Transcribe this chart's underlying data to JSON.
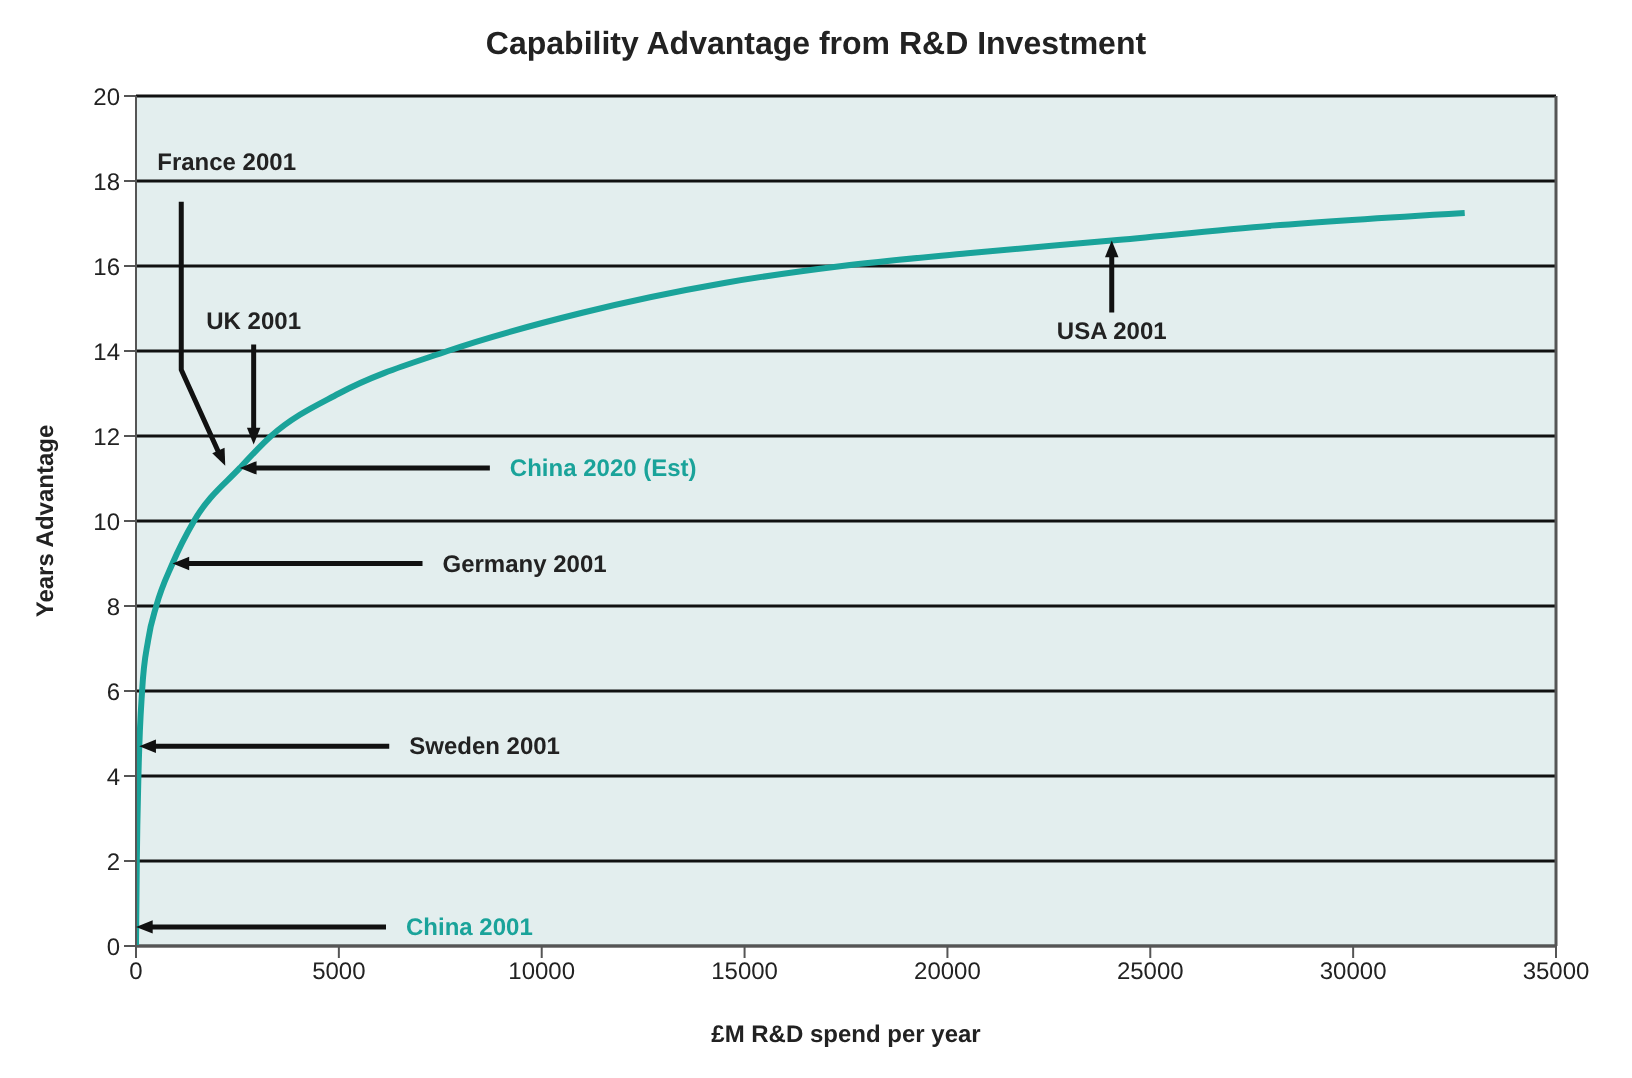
{
  "chart_data": {
    "type": "line",
    "title": "Capability Advantage from R&D Investment",
    "xlabel": "£M R&D spend per year",
    "ylabel": "Years Advantage",
    "xlim": [
      0,
      35000
    ],
    "xticks": [
      0,
      5000,
      10000,
      15000,
      20000,
      25000,
      30000,
      35000
    ],
    "ylim": [
      0,
      20
    ],
    "yticks": [
      0,
      2,
      4,
      6,
      8,
      10,
      12,
      14,
      16,
      18,
      20
    ],
    "grid": "y",
    "marker": "none",
    "line_style": "solid",
    "series": [
      {
        "color": "#1aa39a",
        "x": [
          0,
          20,
          60,
          150,
          300,
          500,
          900,
          1430,
          2560,
          3330,
          5000,
          7680,
          11000,
          14500,
          17400,
          20500,
          24050,
          28000,
          32750
        ],
        "values": [
          0,
          2,
          4,
          6,
          7.2,
          8,
          9,
          10,
          11.25,
          12,
          13,
          14,
          14.9,
          15.6,
          16,
          16.3,
          16.6,
          16.95,
          17.25
        ]
      }
    ],
    "annotations": [
      {
        "text": "France 2001",
        "x": 2200,
        "y": 11.3
      },
      {
        "text": "UK 2001",
        "x": 2900,
        "y": 11.8
      },
      {
        "text": "China 2020 (Est)",
        "x": 2560,
        "y": 11.25
      },
      {
        "text": "Germany 2001",
        "x": 900,
        "y": 9
      },
      {
        "text": "Sweden 2001",
        "x": 80,
        "y": 4.7
      },
      {
        "text": "China 2001",
        "x": 0,
        "y": 0.45
      },
      {
        "text": "USA 2001",
        "x": 24050,
        "y": 16.6
      }
    ]
  }
}
